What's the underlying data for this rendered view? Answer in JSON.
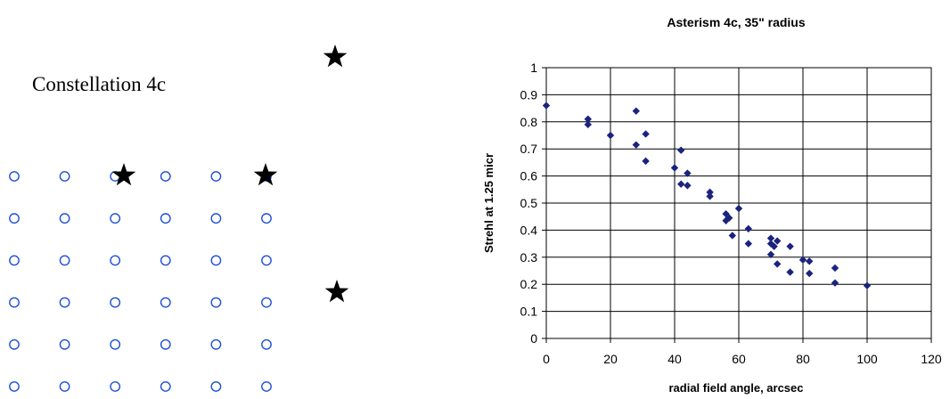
{
  "constellation": {
    "title": "Constellation 4c",
    "grid": {
      "columns": 6,
      "rows": 6,
      "marker_color": "#1f4fd6"
    },
    "guide_star_color": "#000000"
  },
  "chart_data": {
    "type": "scatter",
    "title": "Asterism 4c, 35\" radius",
    "xlabel": "radial field angle, arcsec",
    "ylabel": "Strehl at 1.25 micr",
    "xlim": [
      0,
      120
    ],
    "ylim": [
      0,
      1
    ],
    "xticks": [
      "0",
      "20",
      "40",
      "60",
      "80",
      "100",
      "120"
    ],
    "yticks": [
      "0",
      "0.1",
      "0.2",
      "0.3",
      "0.4",
      "0.5",
      "0.6",
      "0.7",
      "0.8",
      "0.9",
      "1"
    ],
    "grid": true,
    "marker_color": "#1a237e",
    "points": [
      [
        0,
        0.86
      ],
      [
        13,
        0.81
      ],
      [
        13,
        0.79
      ],
      [
        20,
        0.75
      ],
      [
        28,
        0.84
      ],
      [
        28,
        0.715
      ],
      [
        31,
        0.755
      ],
      [
        31,
        0.655
      ],
      [
        40,
        0.63
      ],
      [
        42,
        0.695
      ],
      [
        42,
        0.57
      ],
      [
        44,
        0.61
      ],
      [
        44,
        0.565
      ],
      [
        51,
        0.54
      ],
      [
        51,
        0.525
      ],
      [
        56,
        0.46
      ],
      [
        56,
        0.435
      ],
      [
        57,
        0.445
      ],
      [
        58,
        0.38
      ],
      [
        60,
        0.48
      ],
      [
        63,
        0.405
      ],
      [
        63,
        0.35
      ],
      [
        70,
        0.37
      ],
      [
        70,
        0.35
      ],
      [
        70,
        0.31
      ],
      [
        71,
        0.34
      ],
      [
        72,
        0.36
      ],
      [
        72,
        0.275
      ],
      [
        76,
        0.34
      ],
      [
        76,
        0.245
      ],
      [
        80,
        0.29
      ],
      [
        82,
        0.285
      ],
      [
        82,
        0.24
      ],
      [
        90,
        0.26
      ],
      [
        90,
        0.205
      ],
      [
        100,
        0.195
      ]
    ]
  }
}
